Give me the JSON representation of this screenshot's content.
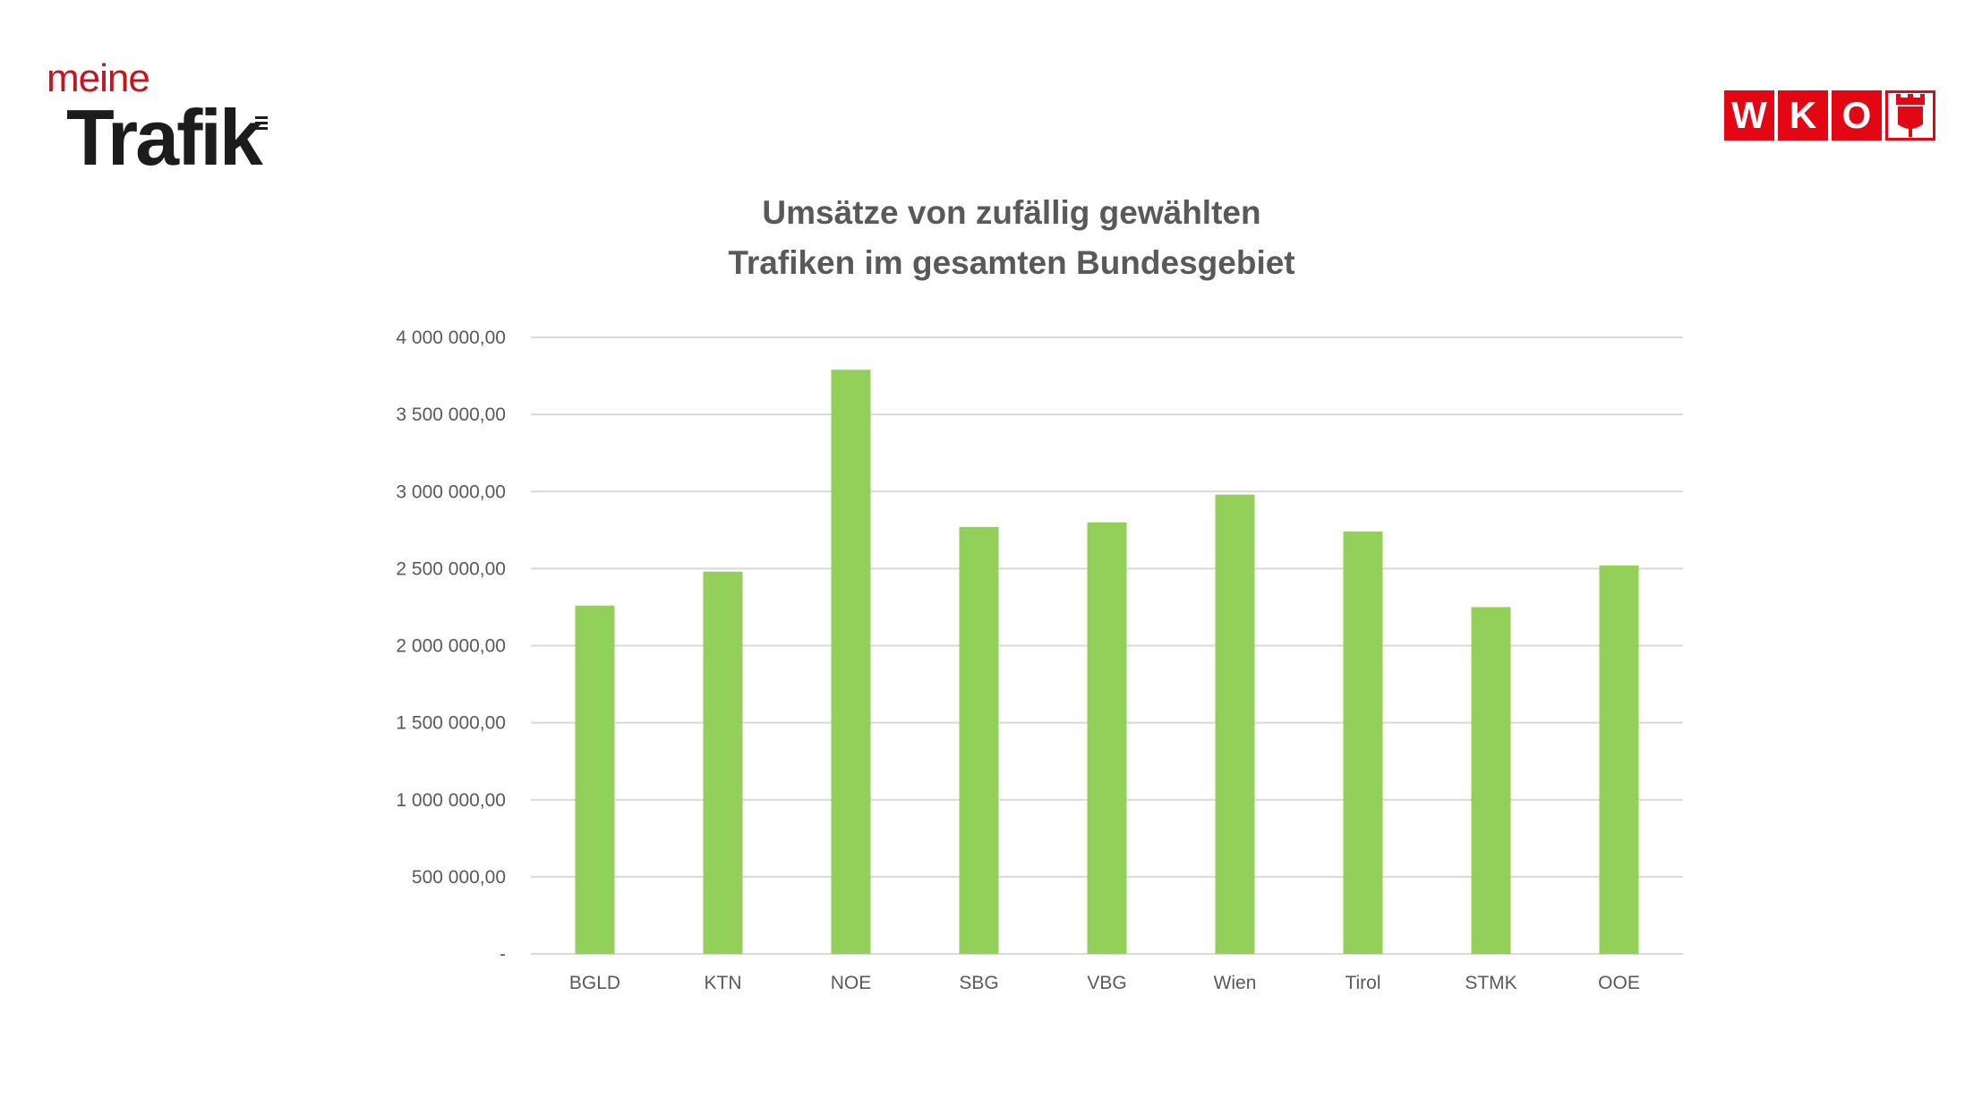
{
  "logos": {
    "left": {
      "line1": "meine",
      "line2": "Trafik"
    },
    "right": {
      "letters": [
        "W",
        "K",
        "O"
      ],
      "crest_icon": "coat-of-arms-icon"
    }
  },
  "colors": {
    "bar": "#92d05a",
    "grid": "#d9d9d9",
    "text": "#595959",
    "brand_red": "#e30613"
  },
  "chart_data": {
    "type": "bar",
    "title_lines": [
      "Umsätze von zufällig gewählten",
      "Trafiken im gesamten Bundesgebiet"
    ],
    "categories": [
      "BGLD",
      "KTN",
      "NOE",
      "SBG",
      "VBG",
      "Wien",
      "Tirol",
      "STMK",
      "OOE"
    ],
    "values": [
      2260000,
      2480000,
      3790000,
      2770000,
      2800000,
      2980000,
      2740000,
      2250000,
      2520000
    ],
    "ylim": [
      0,
      4000000
    ],
    "yticks": [
      {
        "value": 0,
        "label": "-"
      },
      {
        "value": 500000,
        "label": "500 000,00"
      },
      {
        "value": 1000000,
        "label": "1 000 000,00"
      },
      {
        "value": 1500000,
        "label": "1 500 000,00"
      },
      {
        "value": 2000000,
        "label": "2 000 000,00"
      },
      {
        "value": 2500000,
        "label": "2 500 000,00"
      },
      {
        "value": 3000000,
        "label": "3 000 000,00"
      },
      {
        "value": 3500000,
        "label": "3 500 000,00"
      },
      {
        "value": 4000000,
        "label": "4 000 000,00"
      }
    ],
    "grid": true,
    "legend": "none"
  }
}
